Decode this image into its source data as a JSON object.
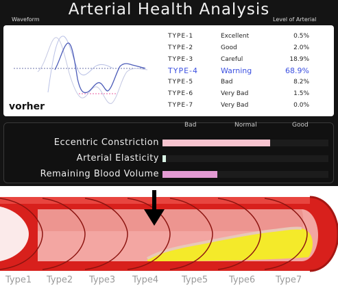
{
  "title": "Arterial Health Analysis",
  "waveform_label": "Waveform",
  "level_label": "Level of Arterial",
  "caption": "vorher",
  "types": [
    {
      "type": "TYPE-1",
      "level": "Excellent",
      "percent": "0.5%",
      "highlight": false
    },
    {
      "type": "TYPE-2",
      "level": "Good",
      "percent": "2.0%",
      "highlight": false
    },
    {
      "type": "TYPE-3",
      "level": "Careful",
      "percent": "18.9%",
      "highlight": false
    },
    {
      "type": "TYPE-4",
      "level": "Warning",
      "percent": "68.9%",
      "highlight": true
    },
    {
      "type": "TYPE-5",
      "level": "Bad",
      "percent": "8.2%",
      "highlight": false
    },
    {
      "type": "TYPE-6",
      "level": "Very Bad",
      "percent": "1.5%",
      "highlight": false
    },
    {
      "type": "TYPE-7",
      "level": "Very Bad",
      "percent": "0.0%",
      "highlight": false
    }
  ],
  "scale": {
    "bad": "Bad",
    "normal": "Normal",
    "good": "Good"
  },
  "metrics": [
    {
      "label": "Eccentric Constriction",
      "level": 0.65,
      "color": "#f7c4cf"
    },
    {
      "label": "Arterial Elasticity",
      "level": 0.02,
      "color": "#d8f2e4"
    },
    {
      "label": "Remaining Blood Volume",
      "level": 0.33,
      "color": "#e39ad3"
    }
  ],
  "vessel_types": [
    "Type1",
    "Type2",
    "Type3",
    "Type4",
    "Type5",
    "Type6",
    "Type7"
  ],
  "colors": {
    "accent": "#3a4fe0",
    "panel": "#141414",
    "vessel_red": "#d8201c",
    "plaque_yellow": "#f4ea2a"
  },
  "indicator_icon": "down-arrow-icon"
}
